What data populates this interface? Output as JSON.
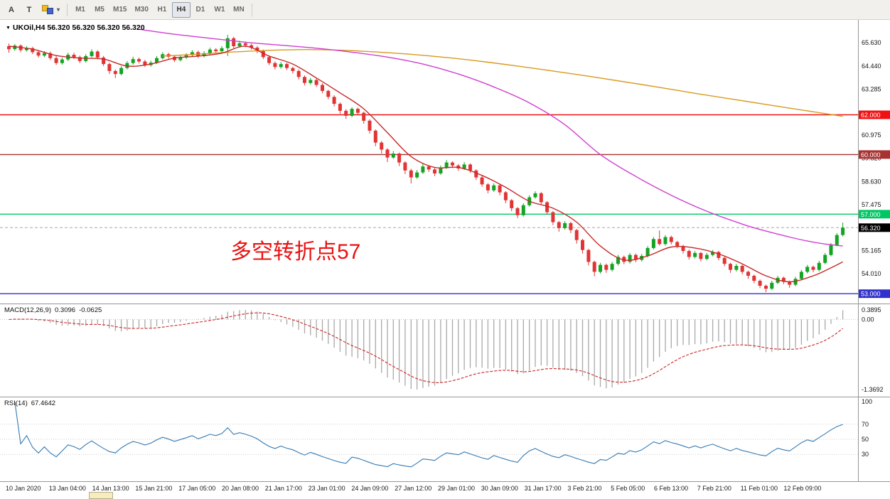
{
  "toolbar": {
    "buttons": [
      "A",
      "T"
    ],
    "caret": "▾",
    "timeframes": [
      "M1",
      "M5",
      "M15",
      "M30",
      "H1",
      "H4",
      "D1",
      "W1",
      "MN"
    ],
    "active_timeframe": "H4"
  },
  "chart": {
    "collapse_icon": "▼",
    "symbol_label": "UKOil,H4 56.320 56.320 56.320 56.320",
    "annotation": "多空转折点57",
    "y_axis_labels": [
      {
        "text": "65.630",
        "price": 65.63
      },
      {
        "text": "64.440",
        "price": 64.44
      },
      {
        "text": "63.285",
        "price": 63.285
      },
      {
        "text": "60.975",
        "price": 60.975
      },
      {
        "text": "59.820",
        "price": 59.82
      },
      {
        "text": "58.630",
        "price": 58.63
      },
      {
        "text": "57.475",
        "price": 57.475
      },
      {
        "text": "55.165",
        "price": 55.165
      },
      {
        "text": "54.010",
        "price": 54.01
      }
    ],
    "time_axis_labels": [
      "10 Jan 2020",
      "13 Jan 04:00",
      "14 Jan 13:00",
      "15 Jan 21:00",
      "17 Jan 05:00",
      "20 Jan 08:00",
      "21 Jan 17:00",
      "23 Jan 01:00",
      "24 Jan 09:00",
      "27 Jan 12:00",
      "29 Jan 01:00",
      "30 Jan 09:00",
      "31 Jan 17:00",
      "3 Feb 21:00",
      "5 Feb 05:00",
      "6 Feb 13:00",
      "7 Feb 21:00",
      "11 Feb 01:00",
      "12 Feb 09:00"
    ]
  },
  "panels": {
    "macd": {
      "label": "MACD(12,26,9)",
      "value_main": "0.3096",
      "value_signal": "-0.0625",
      "scale_labels": [
        "0.3895",
        "0.00",
        "-1.3692"
      ]
    },
    "rsi": {
      "label": "RSI(14)",
      "value": "67.4642",
      "scale": [
        {
          "v": 100,
          "t": "100"
        },
        {
          "v": 70,
          "t": "70"
        },
        {
          "v": 50,
          "t": "50"
        },
        {
          "v": 30,
          "t": "30"
        }
      ],
      "levels": [
        70,
        50,
        30
      ]
    }
  },
  "colors": {
    "bull": "#14a322",
    "bear": "#e23434",
    "macd_hist": "#a9a9a9",
    "macd_signal": "#cc2626",
    "rsi_line": "#3579b1",
    "bid_line": "#a8a8a8",
    "annotation": "#e81212"
  },
  "chart_data": {
    "type": "candlestick",
    "symbol": "UKOil",
    "timeframe": "H4",
    "ohlc": [
      [
        65.45,
        65.58,
        65.12,
        65.3
      ],
      [
        65.3,
        65.56,
        65.22,
        65.48
      ],
      [
        65.48,
        65.55,
        65.15,
        65.25
      ],
      [
        65.25,
        65.45,
        65.18,
        65.35
      ],
      [
        65.35,
        65.42,
        65.05,
        65.15
      ],
      [
        65.15,
        65.22,
        64.88,
        64.98
      ],
      [
        64.98,
        65.2,
        64.9,
        65.1
      ],
      [
        65.1,
        65.18,
        64.75,
        64.85
      ],
      [
        64.85,
        64.95,
        64.5,
        64.6
      ],
      [
        64.6,
        64.88,
        64.52,
        64.78
      ],
      [
        64.78,
        65.12,
        64.7,
        65.02
      ],
      [
        65.02,
        65.12,
        64.8,
        64.9
      ],
      [
        64.9,
        64.98,
        64.6,
        64.7
      ],
      [
        64.7,
        65.05,
        64.62,
        64.95
      ],
      [
        64.95,
        65.3,
        64.88,
        65.18
      ],
      [
        65.18,
        65.25,
        64.78,
        64.88
      ],
      [
        64.88,
        64.96,
        64.45,
        64.55
      ],
      [
        64.55,
        64.62,
        64.05,
        64.2
      ],
      [
        64.2,
        64.28,
        63.85,
        64.05
      ],
      [
        64.05,
        64.45,
        63.98,
        64.35
      ],
      [
        64.35,
        64.7,
        64.28,
        64.6
      ],
      [
        64.6,
        64.92,
        64.52,
        64.8
      ],
      [
        64.8,
        64.88,
        64.58,
        64.68
      ],
      [
        64.68,
        64.76,
        64.4,
        64.5
      ],
      [
        64.5,
        64.72,
        64.42,
        64.62
      ],
      [
        64.62,
        64.95,
        64.55,
        64.85
      ],
      [
        64.85,
        65.15,
        64.78,
        65.05
      ],
      [
        65.05,
        65.12,
        64.82,
        64.92
      ],
      [
        64.92,
        65.0,
        64.65,
        64.75
      ],
      [
        64.75,
        64.98,
        64.68,
        64.88
      ],
      [
        64.88,
        65.1,
        64.8,
        65.0
      ],
      [
        65.0,
        65.25,
        64.92,
        65.15
      ],
      [
        65.15,
        65.22,
        64.85,
        64.95
      ],
      [
        64.95,
        65.2,
        64.88,
        65.1
      ],
      [
        65.1,
        65.38,
        65.02,
        65.28
      ],
      [
        65.28,
        65.35,
        65.08,
        65.2
      ],
      [
        65.2,
        65.45,
        65.12,
        65.35
      ],
      [
        65.35,
        66.02,
        64.95,
        65.85
      ],
      [
        65.85,
        65.92,
        65.35,
        65.45
      ],
      [
        65.45,
        65.72,
        65.38,
        65.6
      ],
      [
        65.6,
        65.68,
        65.4,
        65.5
      ],
      [
        65.5,
        65.58,
        65.28,
        65.38
      ],
      [
        65.38,
        65.46,
        65.1,
        65.2
      ],
      [
        65.2,
        65.28,
        64.8,
        64.9
      ],
      [
        64.9,
        64.98,
        64.5,
        64.6
      ],
      [
        64.6,
        64.68,
        64.28,
        64.4
      ],
      [
        64.4,
        64.65,
        64.32,
        64.55
      ],
      [
        64.55,
        64.62,
        64.25,
        64.35
      ],
      [
        64.35,
        64.42,
        64.08,
        64.2
      ],
      [
        64.2,
        64.28,
        63.78,
        63.9
      ],
      [
        63.9,
        63.98,
        63.48,
        63.6
      ],
      [
        63.6,
        63.85,
        63.52,
        63.75
      ],
      [
        63.75,
        63.82,
        63.4,
        63.5
      ],
      [
        63.5,
        63.58,
        63.08,
        63.2
      ],
      [
        63.2,
        63.26,
        62.78,
        62.9
      ],
      [
        62.9,
        62.98,
        62.42,
        62.55
      ],
      [
        62.55,
        62.62,
        62.05,
        62.2
      ],
      [
        62.2,
        62.28,
        61.8,
        61.95
      ],
      [
        61.95,
        62.38,
        61.88,
        62.3
      ],
      [
        62.3,
        62.36,
        61.98,
        62.1
      ],
      [
        62.1,
        62.16,
        61.55,
        61.7
      ],
      [
        61.7,
        61.78,
        61.05,
        61.2
      ],
      [
        61.2,
        61.26,
        60.42,
        60.6
      ],
      [
        60.6,
        60.68,
        60.05,
        60.25
      ],
      [
        60.25,
        60.32,
        59.62,
        59.85
      ],
      [
        59.85,
        60.18,
        59.78,
        60.05
      ],
      [
        60.05,
        60.1,
        59.42,
        59.6
      ],
      [
        59.6,
        59.66,
        59.02,
        59.2
      ],
      [
        59.2,
        59.28,
        58.55,
        58.85
      ],
      [
        58.85,
        59.22,
        58.78,
        59.1
      ],
      [
        59.1,
        59.52,
        59.02,
        59.4
      ],
      [
        59.4,
        59.46,
        59.12,
        59.25
      ],
      [
        59.25,
        59.32,
        58.92,
        59.05
      ],
      [
        59.05,
        59.45,
        58.98,
        59.35
      ],
      [
        59.35,
        59.72,
        59.28,
        59.6
      ],
      [
        59.6,
        59.66,
        59.32,
        59.45
      ],
      [
        59.45,
        59.52,
        59.18,
        59.3
      ],
      [
        59.3,
        59.62,
        59.22,
        59.5
      ],
      [
        59.5,
        59.56,
        59.08,
        59.2
      ],
      [
        59.2,
        59.26,
        58.72,
        58.85
      ],
      [
        58.85,
        58.92,
        58.38,
        58.5
      ],
      [
        58.5,
        58.56,
        58.05,
        58.2
      ],
      [
        58.2,
        58.55,
        58.12,
        58.45
      ],
      [
        58.45,
        58.5,
        57.95,
        58.1
      ],
      [
        58.1,
        58.16,
        57.55,
        57.7
      ],
      [
        57.7,
        57.76,
        57.15,
        57.3
      ],
      [
        57.3,
        57.36,
        56.8,
        56.95
      ],
      [
        56.95,
        57.55,
        56.88,
        57.45
      ],
      [
        57.45,
        57.95,
        57.38,
        57.85
      ],
      [
        57.85,
        58.15,
        57.78,
        58.05
      ],
      [
        58.05,
        58.12,
        57.48,
        57.6
      ],
      [
        57.6,
        57.66,
        56.98,
        57.1
      ],
      [
        57.1,
        57.16,
        56.45,
        56.6
      ],
      [
        56.6,
        56.66,
        56.12,
        56.3
      ],
      [
        56.3,
        56.65,
        56.22,
        56.55
      ],
      [
        56.55,
        56.62,
        56.05,
        56.2
      ],
      [
        56.2,
        56.26,
        55.52,
        55.7
      ],
      [
        55.7,
        55.76,
        55.02,
        55.2
      ],
      [
        55.2,
        55.26,
        54.42,
        54.6
      ],
      [
        54.6,
        54.66,
        53.88,
        54.1
      ],
      [
        54.1,
        54.55,
        54.02,
        54.45
      ],
      [
        54.45,
        54.52,
        54.05,
        54.2
      ],
      [
        54.2,
        54.6,
        54.12,
        54.5
      ],
      [
        54.5,
        54.95,
        54.42,
        54.85
      ],
      [
        54.85,
        54.92,
        54.48,
        54.6
      ],
      [
        54.6,
        55.05,
        54.52,
        54.95
      ],
      [
        54.95,
        55.02,
        54.58,
        54.7
      ],
      [
        54.7,
        55.0,
        54.62,
        54.9
      ],
      [
        54.9,
        55.4,
        54.82,
        55.3
      ],
      [
        55.3,
        55.85,
        55.22,
        55.75
      ],
      [
        55.75,
        56.18,
        55.42,
        55.5
      ],
      [
        55.5,
        55.95,
        55.42,
        55.85
      ],
      [
        55.85,
        55.92,
        55.48,
        55.6
      ],
      [
        55.6,
        55.66,
        55.28,
        55.4
      ],
      [
        55.4,
        55.46,
        55.02,
        55.15
      ],
      [
        55.15,
        55.22,
        54.72,
        54.85
      ],
      [
        54.85,
        55.15,
        54.78,
        55.05
      ],
      [
        55.05,
        55.1,
        54.62,
        54.75
      ],
      [
        54.75,
        55.05,
        54.68,
        54.95
      ],
      [
        54.95,
        55.2,
        54.88,
        55.1
      ],
      [
        55.1,
        55.16,
        54.68,
        54.8
      ],
      [
        54.8,
        54.86,
        54.38,
        54.5
      ],
      [
        54.5,
        54.56,
        54.05,
        54.2
      ],
      [
        54.2,
        54.5,
        54.12,
        54.4
      ],
      [
        54.4,
        54.46,
        53.98,
        54.1
      ],
      [
        54.1,
        54.16,
        53.75,
        53.9
      ],
      [
        53.9,
        53.96,
        53.52,
        53.65
      ],
      [
        53.65,
        53.72,
        53.28,
        53.4
      ],
      [
        53.4,
        53.46,
        53.08,
        53.25
      ],
      [
        53.25,
        53.65,
        53.18,
        53.55
      ],
      [
        53.55,
        53.9,
        53.48,
        53.8
      ],
      [
        53.8,
        53.86,
        53.48,
        53.6
      ],
      [
        53.6,
        53.66,
        53.3,
        53.45
      ],
      [
        53.45,
        53.85,
        53.38,
        53.75
      ],
      [
        53.75,
        54.2,
        53.68,
        54.1
      ],
      [
        54.1,
        54.45,
        54.02,
        54.35
      ],
      [
        54.35,
        54.42,
        54.08,
        54.2
      ],
      [
        54.2,
        54.65,
        54.12,
        54.55
      ],
      [
        54.55,
        55.05,
        54.48,
        54.95
      ],
      [
        54.95,
        55.55,
        54.88,
        55.45
      ],
      [
        55.45,
        56.05,
        55.38,
        55.95
      ],
      [
        55.95,
        56.58,
        55.88,
        56.32
      ]
    ],
    "moving_averages": [
      {
        "name": "ma-slow",
        "color": "#d89a1e",
        "points": [
          [
            26,
            64.95
          ],
          [
            32,
            65.05
          ],
          [
            38,
            65.16
          ],
          [
            44,
            65.24
          ],
          [
            50,
            65.28
          ],
          [
            56,
            65.25
          ],
          [
            62,
            65.16
          ],
          [
            68,
            65.04
          ],
          [
            74,
            64.88
          ],
          [
            80,
            64.68
          ],
          [
            86,
            64.45
          ],
          [
            92,
            64.2
          ],
          [
            98,
            63.94
          ],
          [
            104,
            63.66
          ],
          [
            110,
            63.38
          ],
          [
            116,
            63.08
          ],
          [
            122,
            62.8
          ],
          [
            128,
            62.52
          ],
          [
            134,
            62.24
          ],
          [
            138,
            62.06
          ],
          [
            141,
            61.92
          ]
        ]
      },
      {
        "name": "ma-mid",
        "color": "#cf3ecf",
        "points": [
          [
            22,
            66.3
          ],
          [
            28,
            66.05
          ],
          [
            34,
            65.85
          ],
          [
            40,
            65.65
          ],
          [
            46,
            65.5
          ],
          [
            52,
            65.35
          ],
          [
            58,
            65.15
          ],
          [
            64,
            64.9
          ],
          [
            70,
            64.55
          ],
          [
            76,
            64.05
          ],
          [
            82,
            63.4
          ],
          [
            88,
            62.6
          ],
          [
            94,
            61.5
          ],
          [
            100,
            60.0
          ],
          [
            106,
            58.9
          ],
          [
            112,
            57.95
          ],
          [
            118,
            57.15
          ],
          [
            124,
            56.5
          ],
          [
            128,
            56.15
          ],
          [
            132,
            55.85
          ],
          [
            135,
            55.65
          ],
          [
            138,
            55.5
          ],
          [
            141,
            55.4
          ]
        ]
      },
      {
        "name": "ma-fast",
        "color": "#c62828",
        "points": [
          [
            0,
            65.45
          ],
          [
            4,
            65.3
          ],
          [
            8,
            64.98
          ],
          [
            12,
            64.85
          ],
          [
            16,
            64.8
          ],
          [
            20,
            64.45
          ],
          [
            24,
            64.55
          ],
          [
            28,
            64.85
          ],
          [
            32,
            64.95
          ],
          [
            36,
            65.1
          ],
          [
            40,
            65.45
          ],
          [
            44,
            64.95
          ],
          [
            48,
            64.55
          ],
          [
            52,
            63.85
          ],
          [
            56,
            63.1
          ],
          [
            60,
            62.3
          ],
          [
            64,
            61.1
          ],
          [
            68,
            59.9
          ],
          [
            72,
            59.35
          ],
          [
            76,
            59.35
          ],
          [
            80,
            58.95
          ],
          [
            84,
            58.35
          ],
          [
            88,
            57.65
          ],
          [
            92,
            57.3
          ],
          [
            96,
            56.6
          ],
          [
            100,
            55.4
          ],
          [
            104,
            54.7
          ],
          [
            108,
            54.9
          ],
          [
            112,
            55.35
          ],
          [
            116,
            55.3
          ],
          [
            120,
            55.0
          ],
          [
            124,
            54.5
          ],
          [
            128,
            53.9
          ],
          [
            132,
            53.6
          ],
          [
            136,
            53.9
          ],
          [
            139,
            54.3
          ],
          [
            141,
            54.6
          ]
        ]
      }
    ],
    "levels": [
      {
        "price": 62.0,
        "label": "62.000",
        "color": "#f01212"
      },
      {
        "price": 60.0,
        "label": "60.000",
        "color": "#a83232"
      },
      {
        "price": 57.0,
        "label": "57.000",
        "color": "#00c764"
      },
      {
        "price": 53.0,
        "label": "53.000",
        "color": "#3030cc"
      }
    ],
    "bid": {
      "price": 56.32,
      "label": "56.320",
      "badge_color": "#000000"
    },
    "indicators": {
      "macd": {
        "fast": 12,
        "slow": 26,
        "signal": 9
      },
      "rsi": {
        "period": 14
      }
    }
  }
}
